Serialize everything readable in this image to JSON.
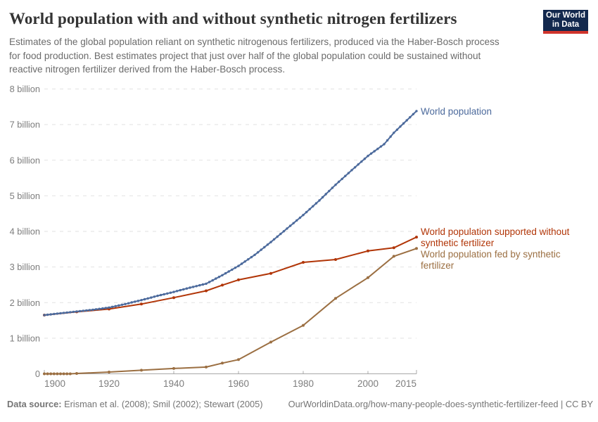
{
  "header": {
    "title": "World population with and without synthetic nitrogen fertilizers",
    "subtitle": "Estimates of the global population reliant on synthetic nitrogenous fertilizers, produced via the Haber-Bosch process for food production. Best estimates project that just over half of the global population could be sustained without reactive nitrogen fertilizer derived from the Haber-Bosch process.",
    "logo": {
      "line1": "Our World",
      "line2": "in Data",
      "bg": "#13294e",
      "accent": "#d0342c"
    }
  },
  "chart_data": {
    "type": "line",
    "title": "World population with and without synthetic nitrogen fertilizers",
    "xlabel": "",
    "ylabel": "",
    "grid": "horizontal-dashed",
    "legend_position": "right-of-line-ends",
    "x_axis": {
      "min": 1900,
      "max": 2015,
      "ticks": [
        1900,
        1920,
        1940,
        1960,
        1980,
        2000,
        2015
      ]
    },
    "y_axis": {
      "min": 0,
      "max": 8,
      "unit": "billion",
      "tick_labels": [
        "0",
        "1 billion",
        "2 billion",
        "3 billion",
        "4 billion",
        "5 billion",
        "6 billion",
        "7 billion",
        "8 billion"
      ]
    },
    "series": [
      {
        "name": "World population",
        "label_lines": [
          "World population"
        ],
        "color": "#4C6A9C",
        "markers": "yearly-dots",
        "points": [
          [
            1900,
            1.65
          ],
          [
            1905,
            1.7
          ],
          [
            1910,
            1.75
          ],
          [
            1915,
            1.8
          ],
          [
            1920,
            1.86
          ],
          [
            1925,
            1.96
          ],
          [
            1930,
            2.07
          ],
          [
            1935,
            2.19
          ],
          [
            1940,
            2.3
          ],
          [
            1945,
            2.42
          ],
          [
            1950,
            2.53
          ],
          [
            1955,
            2.77
          ],
          [
            1960,
            3.03
          ],
          [
            1965,
            3.34
          ],
          [
            1970,
            3.7
          ],
          [
            1975,
            4.08
          ],
          [
            1980,
            4.46
          ],
          [
            1985,
            4.87
          ],
          [
            1990,
            5.31
          ],
          [
            1995,
            5.72
          ],
          [
            2000,
            6.12
          ],
          [
            2005,
            6.45
          ],
          [
            2008,
            6.77
          ],
          [
            2015,
            7.38
          ]
        ]
      },
      {
        "name": "World population supported without synthetic fertilizer",
        "label_lines": [
          "World population supported without",
          "synthetic fertilizer"
        ],
        "color": "#B13507",
        "markers": "points",
        "points": [
          [
            1900,
            1.65
          ],
          [
            1910,
            1.74
          ],
          [
            1920,
            1.82
          ],
          [
            1930,
            1.96
          ],
          [
            1940,
            2.14
          ],
          [
            1950,
            2.33
          ],
          [
            1955,
            2.49
          ],
          [
            1960,
            2.64
          ],
          [
            1970,
            2.82
          ],
          [
            1980,
            3.13
          ],
          [
            1990,
            3.21
          ],
          [
            2000,
            3.45
          ],
          [
            2008,
            3.54
          ],
          [
            2015,
            3.84
          ]
        ]
      },
      {
        "name": "World population fed by synthetic fertilizer",
        "label_lines": [
          "World population fed by synthetic",
          "fertilizer"
        ],
        "color": "#9B6F42",
        "markers": "points",
        "points": [
          [
            1900,
            0
          ],
          [
            1901,
            0
          ],
          [
            1902,
            0
          ],
          [
            1903,
            0
          ],
          [
            1904,
            0
          ],
          [
            1905,
            0
          ],
          [
            1906,
            0
          ],
          [
            1907,
            0
          ],
          [
            1908,
            0
          ],
          [
            1910,
            0.01
          ],
          [
            1920,
            0.05
          ],
          [
            1930,
            0.1
          ],
          [
            1940,
            0.15
          ],
          [
            1950,
            0.19
          ],
          [
            1955,
            0.3
          ],
          [
            1960,
            0.4
          ],
          [
            1970,
            0.89
          ],
          [
            1980,
            1.36
          ],
          [
            1990,
            2.12
          ],
          [
            2000,
            2.7
          ],
          [
            2008,
            3.3
          ],
          [
            2015,
            3.52
          ]
        ]
      }
    ]
  },
  "footer": {
    "source_label": "Data source:",
    "source_text": "Erisman et al. (2008); Smil (2002); Stewart (2005)",
    "link_text": "OurWorldinData.org/how-many-people-does-synthetic-fertilizer-feed | CC BY"
  }
}
